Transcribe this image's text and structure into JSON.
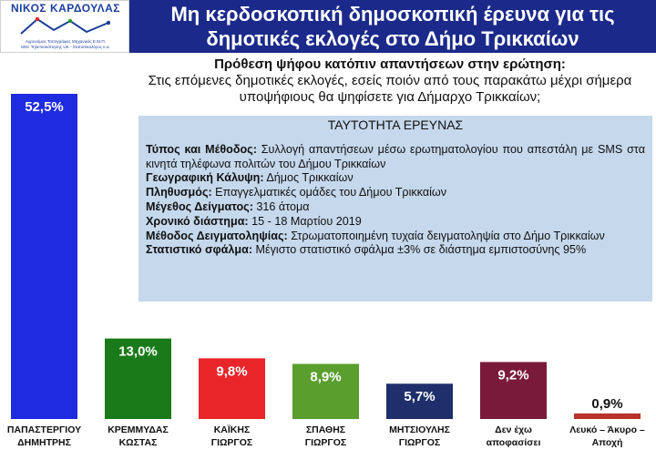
{
  "logo": {
    "name": "ΝΙΚΟΣ ΚΑΡΔΟΥΛΑΣ",
    "line1": "Αγρονόμος Τοπογράφος Μηχανικός Ε.Μ.Π.",
    "line2": "MSc Τηλεπισκόπησης UK - Στατιστικολόγος κ.α."
  },
  "header": {
    "title_line1": "Μη κερδοσκοπική δημοσκοπική έρευνα για τις",
    "title_line2": "δημοτικές εκλογές στο Δήμο Τρικκαίων"
  },
  "question": {
    "heading": "Πρόθεση ψήφου κατόπιν απαντήσεων στην ερώτηση:",
    "text": "Στις επόμενες δημοτικές εκλογές, εσείς ποιόν από τους παρακάτω μέχρι σήμερα υποψήφιους θα ψηφίσετε για Δήμαρχο Τρικκαίων;"
  },
  "survey": {
    "title": "ΤΑΥΤΟΤΗΤΑ ΕΡΕΥΝΑΣ",
    "rows": [
      {
        "label": "Τύπος και Μέθοδος:",
        "value": "Συλλογή απαντήσεων μέσω ερωτηματολογίου που απεστάλη με SMS στα κινητά τηλέφωνα πολιτών του Δήμου Τρικκαίων"
      },
      {
        "label": "Γεωγραφική Κάλυψη:",
        "value": "Δήμος Τρικκαίων"
      },
      {
        "label": "Πληθυσμός:",
        "value": "Επαγγελματικές ομάδες του Δήμου Τρικκαίων"
      },
      {
        "label": "Μέγεθος Δείγματος:",
        "value": "316 άτομα"
      },
      {
        "label": "Χρονικό διάστημα:",
        "value": "15 - 18 Μαρτίου 2019"
      },
      {
        "label": "Μέθοδος Δειγματοληψίας:",
        "value": "Στρωματοποιημένη τυχαία δειγματοληψία στο Δήμο Τρικκαίων"
      },
      {
        "label": "Στατιστικό σφάλμα:",
        "value": "Μέγιστο στατιστικό σφάλμα ±3% σε διάστημα εμπιστοσύνης 95%"
      }
    ]
  },
  "chart_data": {
    "type": "bar",
    "categories": [
      [
        "ΠΑΠΑΣΤΕΡΓΙΟΥ",
        "ΔΗΜΗΤΡΗΣ"
      ],
      [
        "ΚΡΕΜΜΥΔΑΣ",
        "ΚΩΣΤΑΣ"
      ],
      [
        "ΚΑΪΚΗΣ",
        "ΓΙΩΡΓΟΣ"
      ],
      [
        "ΣΠΑΘΗΣ",
        "ΓΙΩΡΓΟΣ"
      ],
      [
        "ΜΗΤΣΙΟΥΛΗΣ",
        "ΓΙΩΡΓΟΣ"
      ],
      [
        "Δεν έχω",
        "αποφασίσει"
      ],
      [
        "Λευκό – Άκυρο –",
        "Αποχή"
      ]
    ],
    "values": [
      52.5,
      13.0,
      9.8,
      8.9,
      5.7,
      9.2,
      0.9
    ],
    "value_labels": [
      "52,5%",
      "13,0%",
      "9,8%",
      "8,9%",
      "5,7%",
      "9,2%",
      "0,9%"
    ],
    "colors": [
      "#1f2be0",
      "#1a7a1a",
      "#e8262a",
      "#5a9e2e",
      "#1f2f6b",
      "#7a1a3a",
      "#b8322a"
    ],
    "label_colors": [
      "#ffffff",
      "#ffffff",
      "#ffffff",
      "#ffffff",
      "#ffffff",
      "#ffffff",
      "#111111"
    ],
    "label_position": [
      "inside",
      "inside",
      "inside",
      "inside",
      "inside",
      "inside",
      "above"
    ],
    "ylim": [
      0,
      52.5
    ],
    "grid": false,
    "legend": false
  }
}
